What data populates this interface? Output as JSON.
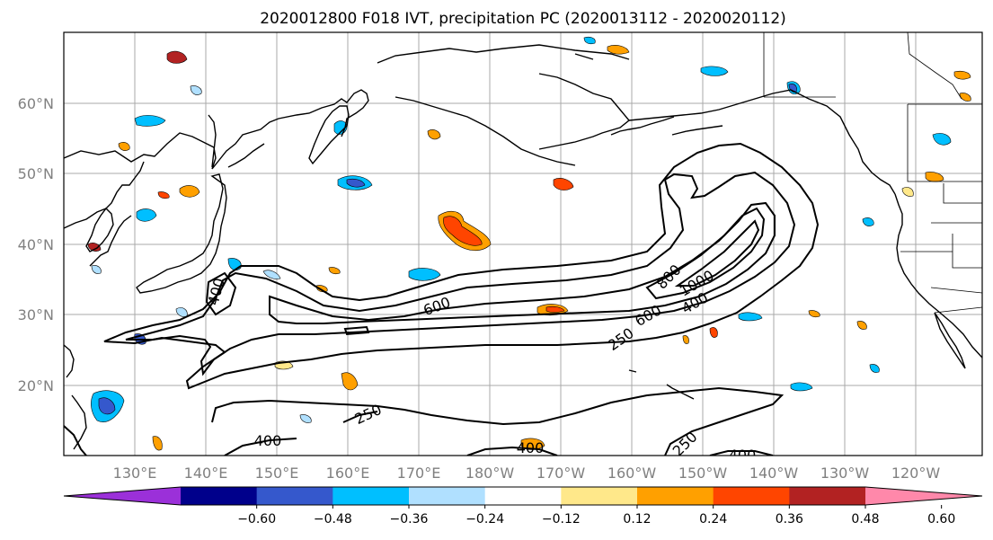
{
  "title": "2020012800 F018 IVT, precipitation PC (2020013112 - 2020020112)",
  "map": {
    "lat_labels": [
      "60°N",
      "50°N",
      "40°N",
      "30°N",
      "20°N"
    ],
    "lon_labels": [
      "130°E",
      "140°E",
      "150°E",
      "160°E",
      "170°E",
      "180°W",
      "170°W",
      "160°W",
      "150°W",
      "140°W",
      "130°W",
      "120°W"
    ]
  },
  "ivt_contour_labels": [
    "400",
    "600",
    "800",
    "1000",
    "600",
    "400",
    "250",
    "250",
    "400",
    "400",
    "250",
    "400"
  ],
  "colorbar": {
    "colors": [
      "#9933cc",
      "#000080",
      "#3a5ccc",
      "#00bfff",
      "#add8ff",
      "#ffffff",
      "#ffff00",
      "#ffa500",
      "#ff4500",
      "#b22222",
      "#ff88aa"
    ],
    "band_colors": [
      "#9b30d9",
      "#00008b",
      "#3558cc",
      "#00bfff",
      "#b0e0ff",
      "#ffffff",
      "#ffe88a",
      "#ffa000",
      "#ff4500",
      "#b22222",
      "#ff88aa"
    ],
    "tick_labels": [
      "−0.60",
      "−0.48",
      "−0.36",
      "−0.24",
      "−0.12",
      "0.12",
      "0.24",
      "0.36",
      "0.48",
      "0.60"
    ]
  }
}
